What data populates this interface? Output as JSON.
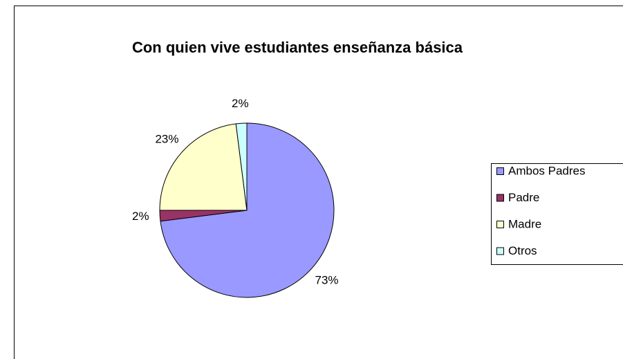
{
  "chart_data": {
    "type": "pie",
    "title": "Con quien vive estudiantes enseñanza básica",
    "categories": [
      "Ambos Padres",
      "Padre",
      "Madre",
      "Otros"
    ],
    "values": [
      73,
      2,
      23,
      2
    ],
    "value_labels": [
      "73%",
      "2%",
      "23%",
      "2%"
    ],
    "colors": [
      "#9999ff",
      "#993366",
      "#ffffcc",
      "#ccffff"
    ],
    "legend": "right"
  }
}
